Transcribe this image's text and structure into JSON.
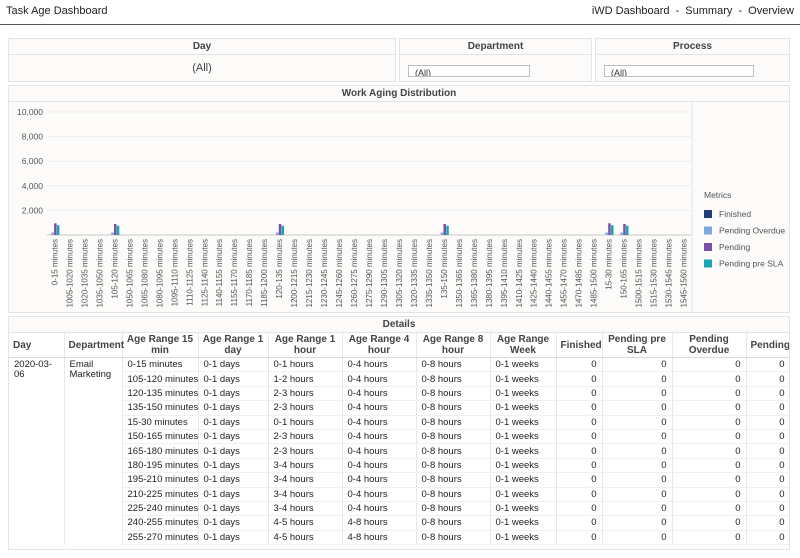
{
  "header": {
    "title": "Task Age Dashboard",
    "breadcrumb": [
      "iWD Dashboard",
      "-",
      "Summary",
      "-",
      "Overview"
    ]
  },
  "filters": {
    "day": {
      "label": "Day",
      "value": "(All)"
    },
    "department": {
      "label": "Department",
      "value": "(All)"
    },
    "process": {
      "label": "Process",
      "value": "(All)"
    }
  },
  "chart_data": {
    "type": "bar",
    "title": "Work Aging Distribution",
    "ylim": [
      0,
      10000
    ],
    "yticks": [
      "2,000",
      "4,000",
      "6,000",
      "8,000",
      "10,000"
    ],
    "ytick_values": [
      2000,
      4000,
      6000,
      8000,
      10000
    ],
    "legend": {
      "title": "Metrics",
      "placement": "right"
    },
    "categories": [
      "0-15 minutes",
      "1005-1020 minutes",
      "1020-1035 minutes",
      "1035-1050 minutes",
      "105-120 minutes",
      "1050-1065 minutes",
      "1065-1080 minutes",
      "1080-1095 minutes",
      "1095-1110 minutes",
      "1110-1125 minutes",
      "1125-1140 minutes",
      "1140-1155 minutes",
      "1155-1170 minutes",
      "1170-1185 minutes",
      "1185-1200 minutes",
      "120-135 minutes",
      "1200-1215 minutes",
      "1215-1230 minutes",
      "1230-1245 minutes",
      "1245-1260 minutes",
      "1260-1275 minutes",
      "1275-1290 minutes",
      "1290-1305 minutes",
      "1305-1320 minutes",
      "1320-1335 minutes",
      "1335-1350 minutes",
      "135-150 minutes",
      "1350-1365 minutes",
      "1365-1380 minutes",
      "1380-1395 minutes",
      "1395-1410 minutes",
      "1410-1425 minutes",
      "1425-1440 minutes",
      "1440-1455 minutes",
      "1455-1470 minutes",
      "1470-1485 minutes",
      "1485-1500 minutes",
      "15-30 minutes",
      "150-165 minutes",
      "1500-1515 minutes",
      "1515-1530 minutes",
      "1530-1545 minutes",
      "1545-1560 minutes"
    ],
    "series": [
      {
        "name": "Finished",
        "color": "#1f3d7a",
        "values": [
          0,
          0,
          0,
          0,
          0,
          0,
          0,
          0,
          0,
          0,
          0,
          0,
          0,
          0,
          0,
          0,
          0,
          0,
          0,
          0,
          0,
          0,
          0,
          0,
          0,
          0,
          0,
          0,
          0,
          0,
          0,
          0,
          0,
          0,
          0,
          0,
          0,
          0,
          0,
          0,
          0,
          0,
          0
        ]
      },
      {
        "name": "Pending Overdue",
        "color": "#7fa6dd",
        "values": [
          200,
          0,
          0,
          0,
          200,
          0,
          0,
          0,
          0,
          0,
          0,
          0,
          0,
          0,
          0,
          200,
          0,
          0,
          0,
          0,
          0,
          0,
          0,
          0,
          0,
          0,
          200,
          0,
          0,
          0,
          0,
          0,
          0,
          0,
          0,
          0,
          0,
          200,
          200,
          0,
          0,
          0,
          0
        ]
      },
      {
        "name": "Pending",
        "color": "#7b4fa6",
        "values": [
          950,
          0,
          0,
          0,
          900,
          0,
          0,
          0,
          0,
          0,
          0,
          0,
          0,
          0,
          0,
          900,
          0,
          0,
          0,
          0,
          0,
          0,
          0,
          0,
          0,
          0,
          900,
          0,
          0,
          0,
          0,
          0,
          0,
          0,
          0,
          0,
          0,
          950,
          900,
          0,
          0,
          0,
          0
        ]
      },
      {
        "name": "Pending pre SLA",
        "color": "#19a6b4",
        "values": [
          800,
          0,
          0,
          0,
          750,
          0,
          0,
          0,
          0,
          0,
          0,
          0,
          0,
          0,
          0,
          750,
          0,
          0,
          0,
          0,
          0,
          0,
          0,
          0,
          0,
          0,
          750,
          0,
          0,
          0,
          0,
          0,
          0,
          0,
          0,
          0,
          0,
          800,
          750,
          0,
          0,
          0,
          0
        ]
      }
    ]
  },
  "details": {
    "title": "Details",
    "columns": [
      "Day",
      "Department",
      "Age Range 15 min",
      "Age Range 1 day",
      "Age Range 1 hour",
      "Age Range 4 hour",
      "Age Range 8 hour",
      "Age Range Week",
      "Finished",
      "Pending pre SLA",
      "Pending Overdue",
      "Pending"
    ],
    "day": "2020-03-06",
    "department": "Email Marketing",
    "rows": [
      [
        "0-15 minutes",
        "0-1 days",
        "0-1 hours",
        "0-4 hours",
        "0-8 hours",
        "0-1 weeks",
        "0",
        "0",
        "0",
        "0"
      ],
      [
        "105-120 minutes",
        "0-1 days",
        "1-2 hours",
        "0-4 hours",
        "0-8 hours",
        "0-1 weeks",
        "0",
        "0",
        "0",
        "0"
      ],
      [
        "120-135 minutes",
        "0-1 days",
        "2-3 hours",
        "0-4 hours",
        "0-8 hours",
        "0-1 weeks",
        "0",
        "0",
        "0",
        "0"
      ],
      [
        "135-150 minutes",
        "0-1 days",
        "2-3 hours",
        "0-4 hours",
        "0-8 hours",
        "0-1 weeks",
        "0",
        "0",
        "0",
        "0"
      ],
      [
        "15-30 minutes",
        "0-1 days",
        "0-1 hours",
        "0-4 hours",
        "0-8 hours",
        "0-1 weeks",
        "0",
        "0",
        "0",
        "0"
      ],
      [
        "150-165 minutes",
        "0-1 days",
        "2-3 hours",
        "0-4 hours",
        "0-8 hours",
        "0-1 weeks",
        "0",
        "0",
        "0",
        "0"
      ],
      [
        "165-180 minutes",
        "0-1 days",
        "2-3 hours",
        "0-4 hours",
        "0-8 hours",
        "0-1 weeks",
        "0",
        "0",
        "0",
        "0"
      ],
      [
        "180-195 minutes",
        "0-1 days",
        "3-4 hours",
        "0-4 hours",
        "0-8 hours",
        "0-1 weeks",
        "0",
        "0",
        "0",
        "0"
      ],
      [
        "195-210 minutes",
        "0-1 days",
        "3-4 hours",
        "0-4 hours",
        "0-8 hours",
        "0-1 weeks",
        "0",
        "0",
        "0",
        "0"
      ],
      [
        "210-225 minutes",
        "0-1 days",
        "3-4 hours",
        "0-4 hours",
        "0-8 hours",
        "0-1 weeks",
        "0",
        "0",
        "0",
        "0"
      ],
      [
        "225-240 minutes",
        "0-1 days",
        "3-4 hours",
        "0-4 hours",
        "0-8 hours",
        "0-1 weeks",
        "0",
        "0",
        "0",
        "0"
      ],
      [
        "240-255 minutes",
        "0-1 days",
        "4-5 hours",
        "4-8 hours",
        "0-8 hours",
        "0-1 weeks",
        "0",
        "0",
        "0",
        "0"
      ],
      [
        "255-270 minutes",
        "0-1 days",
        "4-5 hours",
        "4-8 hours",
        "0-8 hours",
        "0-1 weeks",
        "0",
        "0",
        "0",
        "0"
      ]
    ]
  }
}
